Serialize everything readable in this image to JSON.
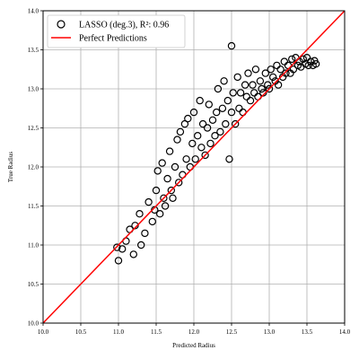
{
  "chart_data": {
    "type": "scatter",
    "title": "",
    "xlabel": "Predicted Radius",
    "ylabel": "True Radius",
    "xlim": [
      10.0,
      14.0
    ],
    "ylim": [
      10.0,
      14.0
    ],
    "x_ticks": [
      "10.0",
      "10.5",
      "11.0",
      "11.5",
      "12.0",
      "12.5",
      "13.0",
      "13.5",
      "14.0"
    ],
    "y_ticks": [
      "10.0",
      "10.5",
      "11.0",
      "11.5",
      "12.0",
      "12.5",
      "13.0",
      "13.5",
      "14.0"
    ],
    "grid": true,
    "legend_position": "top-left",
    "series": [
      {
        "name": "LASSO (deg.3), R²: 0.96",
        "marker": "open-circle",
        "color": "#000000",
        "points": [
          [
            10.98,
            10.97
          ],
          [
            11.0,
            10.8
          ],
          [
            11.05,
            10.95
          ],
          [
            11.1,
            11.05
          ],
          [
            11.2,
            10.88
          ],
          [
            11.15,
            11.2
          ],
          [
            11.22,
            11.25
          ],
          [
            11.3,
            11.0
          ],
          [
            11.28,
            11.4
          ],
          [
            11.35,
            11.15
          ],
          [
            11.4,
            11.55
          ],
          [
            11.45,
            11.3
          ],
          [
            11.5,
            11.7
          ],
          [
            11.48,
            11.45
          ],
          [
            11.55,
            11.4
          ],
          [
            11.52,
            11.95
          ],
          [
            11.6,
            11.6
          ],
          [
            11.58,
            12.05
          ],
          [
            11.62,
            11.5
          ],
          [
            11.65,
            11.85
          ],
          [
            11.7,
            11.7
          ],
          [
            11.68,
            12.2
          ],
          [
            11.72,
            11.6
          ],
          [
            11.75,
            12.0
          ],
          [
            11.78,
            12.35
          ],
          [
            11.8,
            11.8
          ],
          [
            11.82,
            12.45
          ],
          [
            11.85,
            11.9
          ],
          [
            11.88,
            12.55
          ],
          [
            11.9,
            12.1
          ],
          [
            11.92,
            12.62
          ],
          [
            11.95,
            12.0
          ],
          [
            11.98,
            12.3
          ],
          [
            12.0,
            12.7
          ],
          [
            12.02,
            12.1
          ],
          [
            12.05,
            12.4
          ],
          [
            12.08,
            12.85
          ],
          [
            12.1,
            12.25
          ],
          [
            12.12,
            12.55
          ],
          [
            12.15,
            12.15
          ],
          [
            12.18,
            12.5
          ],
          [
            12.2,
            12.8
          ],
          [
            12.22,
            12.3
          ],
          [
            12.25,
            12.6
          ],
          [
            12.28,
            12.4
          ],
          [
            12.3,
            12.7
          ],
          [
            12.32,
            13.0
          ],
          [
            12.35,
            12.45
          ],
          [
            12.38,
            12.75
          ],
          [
            12.4,
            13.1
          ],
          [
            12.42,
            12.55
          ],
          [
            12.45,
            12.85
          ],
          [
            12.47,
            12.1
          ],
          [
            12.5,
            12.7
          ],
          [
            12.5,
            13.55
          ],
          [
            12.52,
            12.95
          ],
          [
            12.55,
            12.55
          ],
          [
            12.58,
            13.15
          ],
          [
            12.6,
            12.75
          ],
          [
            12.62,
            12.95
          ],
          [
            12.65,
            12.7
          ],
          [
            12.68,
            13.05
          ],
          [
            12.7,
            12.9
          ],
          [
            12.72,
            13.2
          ],
          [
            12.75,
            12.85
          ],
          [
            12.78,
            13.05
          ],
          [
            12.8,
            12.95
          ],
          [
            12.82,
            13.25
          ],
          [
            12.85,
            12.9
          ],
          [
            12.88,
            13.1
          ],
          [
            12.9,
            13.0
          ],
          [
            12.92,
            12.95
          ],
          [
            12.95,
            13.2
          ],
          [
            12.98,
            13.05
          ],
          [
            13.0,
            13.0
          ],
          [
            13.02,
            13.25
          ],
          [
            13.05,
            13.15
          ],
          [
            13.08,
            13.1
          ],
          [
            13.1,
            13.3
          ],
          [
            13.12,
            13.05
          ],
          [
            13.15,
            13.25
          ],
          [
            13.18,
            13.15
          ],
          [
            13.2,
            13.35
          ],
          [
            13.22,
            13.2
          ],
          [
            13.25,
            13.3
          ],
          [
            13.28,
            13.2
          ],
          [
            13.3,
            13.38
          ],
          [
            13.32,
            13.25
          ],
          [
            13.35,
            13.4
          ],
          [
            13.38,
            13.3
          ],
          [
            13.4,
            13.35
          ],
          [
            13.42,
            13.28
          ],
          [
            13.45,
            13.38
          ],
          [
            13.48,
            13.32
          ],
          [
            13.5,
            13.4
          ],
          [
            13.52,
            13.3
          ],
          [
            13.55,
            13.35
          ],
          [
            13.58,
            13.3
          ],
          [
            13.6,
            13.36
          ],
          [
            13.62,
            13.32
          ]
        ]
      },
      {
        "name": "Perfect Predictions",
        "marker": "line",
        "color": "#ff0000",
        "points": [
          [
            10.0,
            10.0
          ],
          [
            14.0,
            14.0
          ]
        ]
      }
    ]
  }
}
